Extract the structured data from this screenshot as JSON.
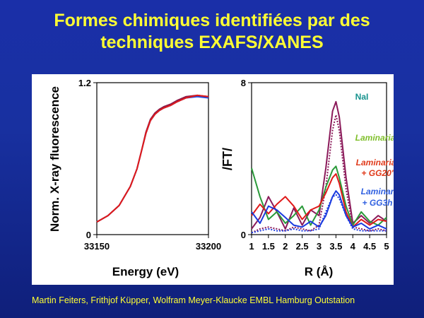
{
  "slide": {
    "title_line1": "Formes chimiques identifiées par des",
    "title_line2": "techniques EXAFS/XANES",
    "footer": "Martin Feiters, Frithjof Küpper, Wolfram Meyer-Klaucke EMBL Hamburg Outstation",
    "title_color": "#ffff33",
    "background_color": "#1a2fa8"
  },
  "chart_data": [
    {
      "type": "line",
      "xlabel": "Energy (eV)",
      "ylabel": "Norm. X-ray fluorescence",
      "xlim": [
        33150,
        33200
      ],
      "ylim": [
        0,
        1.2
      ],
      "x_ticks": [
        "33150",
        "33200"
      ],
      "y_ticks": [
        "0",
        "1.2"
      ],
      "grid": false,
      "series": [
        {
          "color": "#1f4fe0",
          "x": [
            33150,
            33155,
            33160,
            33165,
            33168,
            33170,
            33172,
            33174,
            33176,
            33178,
            33180,
            33183,
            33186,
            33190,
            33195,
            33200
          ],
          "y": [
            0.1,
            0.15,
            0.23,
            0.38,
            0.52,
            0.66,
            0.8,
            0.9,
            0.95,
            0.98,
            1.0,
            1.02,
            1.05,
            1.08,
            1.09,
            1.08
          ]
        },
        {
          "color": "#8b1a4a",
          "x": [
            33150,
            33155,
            33160,
            33165,
            33168,
            33170,
            33172,
            33174,
            33176,
            33178,
            33180,
            33183,
            33186,
            33190,
            33195,
            33200
          ],
          "y": [
            0.1,
            0.15,
            0.23,
            0.38,
            0.52,
            0.66,
            0.81,
            0.91,
            0.96,
            0.99,
            1.01,
            1.03,
            1.06,
            1.09,
            1.1,
            1.09
          ]
        },
        {
          "color": "#e01a1a",
          "x": [
            33150,
            33155,
            33160,
            33165,
            33168,
            33170,
            33172,
            33174,
            33176,
            33178,
            33180,
            33183,
            33186,
            33190,
            33195,
            33200
          ],
          "y": [
            0.1,
            0.15,
            0.23,
            0.38,
            0.52,
            0.66,
            0.8,
            0.9,
            0.95,
            0.98,
            1.0,
            1.02,
            1.05,
            1.08,
            1.1,
            1.09
          ]
        }
      ]
    },
    {
      "type": "line",
      "xlabel": "R (Å)",
      "ylabel": "/FT/",
      "xlim": [
        1,
        5
      ],
      "ylim": [
        0,
        8
      ],
      "x_ticks": [
        "1",
        "1.5",
        "2",
        "2.5",
        "3",
        "3.5",
        "4",
        "4.5",
        "5"
      ],
      "y_ticks": [
        "0",
        "8"
      ],
      "grid": false,
      "legend": [
        {
          "text": "NaI",
          "color": "#17938e"
        },
        {
          "text": "Laminaria",
          "color": "#7fbf2a"
        },
        {
          "text": "Laminaria",
          "color": "#e03a1a"
        },
        {
          "text": "+ GG20'",
          "color": "#e03a1a"
        },
        {
          "text": "Laminaria",
          "color": "#3060e0"
        },
        {
          "text": "+ GG3h",
          "color": "#3060e0"
        }
      ],
      "series": [
        {
          "color": "#8b1a5a",
          "x": [
            1.0,
            1.25,
            1.5,
            1.75,
            2.0,
            2.25,
            2.5,
            2.75,
            3.0,
            3.2,
            3.4,
            3.5,
            3.6,
            3.8,
            4.0,
            4.25,
            4.5,
            4.75,
            5.0
          ],
          "y": [
            0.3,
            0.9,
            2.0,
            1.2,
            0.3,
            1.4,
            0.5,
            1.3,
            1.0,
            3.5,
            6.5,
            7.0,
            6.2,
            3.0,
            0.6,
            1.0,
            0.6,
            1.0,
            0.7
          ]
        },
        {
          "color": "#8b1a5a",
          "dashed": true,
          "x": [
            1.0,
            1.25,
            1.5,
            1.75,
            2.0,
            2.25,
            2.5,
            2.75,
            3.0,
            3.2,
            3.4,
            3.5,
            3.6,
            3.8,
            4.0,
            4.25,
            4.5,
            4.75,
            5.0
          ],
          "y": [
            0.1,
            0.3,
            0.4,
            0.3,
            0.2,
            0.4,
            0.3,
            0.2,
            0.5,
            2.5,
            5.5,
            6.3,
            5.5,
            2.4,
            0.4,
            0.3,
            0.2,
            0.3,
            0.2
          ]
        },
        {
          "color": "#2a9a3a",
          "x": [
            1.0,
            1.25,
            1.5,
            1.75,
            2.0,
            2.25,
            2.5,
            2.75,
            3.0,
            3.2,
            3.4,
            3.5,
            3.6,
            3.8,
            4.0,
            4.25,
            4.5,
            4.75,
            5.0
          ],
          "y": [
            3.5,
            2.0,
            0.8,
            1.2,
            0.6,
            1.0,
            1.5,
            0.5,
            1.3,
            2.5,
            3.4,
            3.6,
            3.0,
            1.5,
            0.5,
            1.2,
            0.7,
            0.5,
            0.9
          ]
        },
        {
          "color": "#e01a1a",
          "x": [
            1.0,
            1.25,
            1.5,
            1.75,
            2.0,
            2.25,
            2.5,
            2.75,
            3.0,
            3.2,
            3.4,
            3.5,
            3.6,
            3.8,
            4.0,
            4.25,
            4.5,
            4.75,
            5.0
          ],
          "y": [
            1.0,
            1.6,
            1.1,
            1.6,
            2.0,
            1.5,
            0.8,
            1.3,
            1.5,
            2.2,
            3.0,
            3.2,
            2.7,
            1.2,
            0.4,
            0.8,
            0.5,
            0.8,
            0.7
          ]
        },
        {
          "color": "#1a3adf",
          "x": [
            1.0,
            1.25,
            1.5,
            1.75,
            2.0,
            2.25,
            2.5,
            2.75,
            3.0,
            3.2,
            3.4,
            3.5,
            3.6,
            3.8,
            4.0,
            4.25,
            4.5,
            4.75,
            5.0
          ],
          "y": [
            1.2,
            0.6,
            1.5,
            1.3,
            0.9,
            0.5,
            0.4,
            0.7,
            0.4,
            1.0,
            2.0,
            2.3,
            2.1,
            1.0,
            0.4,
            0.6,
            0.3,
            0.5,
            0.3
          ]
        },
        {
          "color": "#1a3adf",
          "dashed": true,
          "x": [
            1.0,
            1.25,
            1.5,
            1.75,
            2.0,
            2.25,
            2.5,
            2.75,
            3.0,
            3.2,
            3.4,
            3.5,
            3.6,
            3.8,
            4.0,
            4.25,
            4.5,
            4.75,
            5.0
          ],
          "y": [
            0.1,
            0.2,
            0.3,
            0.2,
            0.2,
            0.3,
            0.2,
            0.2,
            0.3,
            1.2,
            2.0,
            2.1,
            1.9,
            1.0,
            0.3,
            0.2,
            0.2,
            0.2,
            0.2
          ]
        }
      ]
    }
  ]
}
